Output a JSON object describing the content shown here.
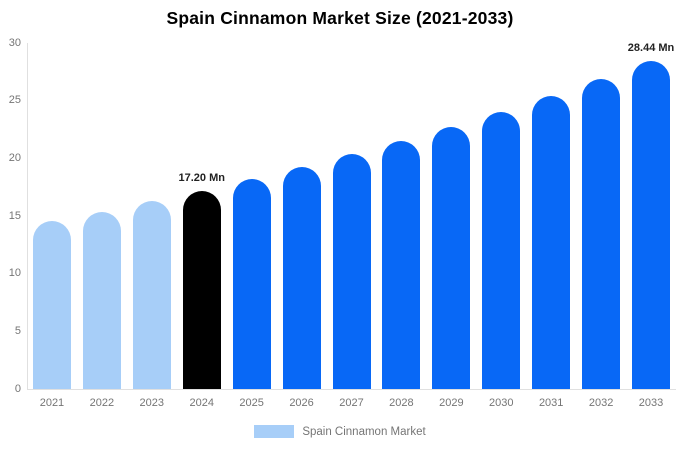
{
  "chart_data": {
    "type": "bar",
    "title": "Spain Cinnamon Market Size (2021-2033)",
    "categories": [
      "2021",
      "2022",
      "2023",
      "2024",
      "2025",
      "2026",
      "2027",
      "2028",
      "2029",
      "2030",
      "2031",
      "2032",
      "2033"
    ],
    "values": [
      14.55,
      15.38,
      16.27,
      17.2,
      18.19,
      19.23,
      20.34,
      21.51,
      22.74,
      24.05,
      25.43,
      26.89,
      28.44
    ],
    "unit": "Mn",
    "xlabel": "",
    "ylabel": "",
    "ylim": [
      0,
      30
    ],
    "yticks": [
      0,
      5,
      10,
      15,
      20,
      25,
      30
    ],
    "grid": false,
    "bar_colors": [
      "#a7cef8",
      "#a7cef8",
      "#a7cef8",
      "#000000",
      "#0868f6",
      "#0868f6",
      "#0868f6",
      "#0868f6",
      "#0868f6",
      "#0868f6",
      "#0868f6",
      "#0868f6",
      "#0868f6"
    ],
    "annotations": [
      {
        "category": "2024",
        "text": "17.20 Mn"
      },
      {
        "category": "2033",
        "text": "28.44 Mn"
      }
    ],
    "legend": {
      "position": "bottom",
      "label": "Spain Cinnamon Market",
      "swatch_color": "#a7cef8"
    }
  },
  "colors": {
    "background": "#ffffff",
    "historical_bar": "#a7cef8",
    "base_year_bar": "#000000",
    "forecast_bar": "#0868f6",
    "axis_line": "#e0e0e0",
    "tick_text": "#757575",
    "title_text": "#000000",
    "annotation_text": "#222222"
  }
}
